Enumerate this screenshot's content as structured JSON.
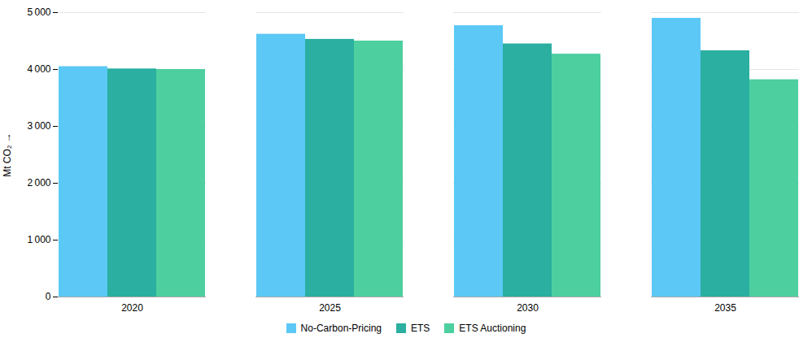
{
  "chart_data": {
    "type": "bar",
    "categories": [
      "2020",
      "2025",
      "2030",
      "2035"
    ],
    "series": [
      {
        "name": "No-Carbon-Pricing",
        "color": "#5BC8F5",
        "values": [
          4050,
          4620,
          4770,
          4900
        ]
      },
      {
        "name": "ETS",
        "color": "#2AAFA0",
        "values": [
          4010,
          4530,
          4450,
          4330
        ]
      },
      {
        "name": "ETS Auctioning",
        "color": "#4DCFA0",
        "values": [
          4000,
          4500,
          4270,
          3820
        ]
      }
    ],
    "ylabel": "Mt CO₂",
    "ylim": [
      0,
      5000
    ],
    "yticks": [
      0,
      {
        "value": 1000,
        "label": "1 000"
      },
      {
        "value": 2000,
        "label": "2 000"
      },
      {
        "value": 3000,
        "label": "3 000"
      },
      {
        "value": 4000,
        "label": "4 000"
      },
      {
        "value": 5000,
        "label": "5 000"
      }
    ],
    "grid": true,
    "legend": "bottom"
  }
}
